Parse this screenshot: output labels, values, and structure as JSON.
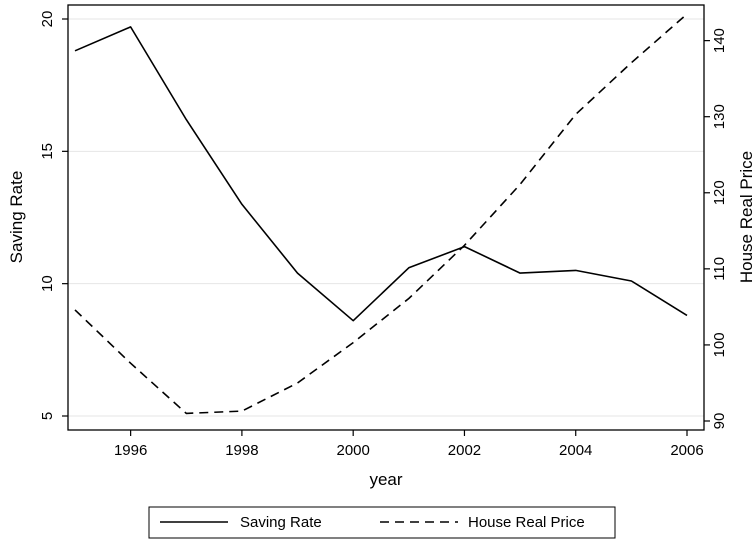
{
  "chart_data": {
    "type": "line",
    "x": [
      1995,
      1996,
      1997,
      1998,
      1999,
      2000,
      2001,
      2002,
      2003,
      2004,
      2005,
      2006
    ],
    "xlabel": "year",
    "x_ticks": [
      1996,
      1998,
      2000,
      2002,
      2004,
      2006
    ],
    "xlim": [
      1995,
      2006
    ],
    "y_left": {
      "label": "Saving Rate",
      "ticks": [
        5,
        10,
        15,
        20
      ],
      "lim": [
        5,
        20
      ]
    },
    "y_right": {
      "label": "House Real Price",
      "ticks": [
        90,
        100,
        110,
        120,
        130,
        140
      ],
      "lim": [
        90,
        143.5
      ]
    },
    "series": [
      {
        "name": "Saving Rate",
        "axis": "left",
        "style": "solid",
        "color": "#000000",
        "values": [
          18.8,
          19.7,
          16.2,
          13.0,
          10.4,
          8.6,
          10.6,
          11.4,
          10.4,
          10.5,
          10.1,
          8.8
        ]
      },
      {
        "name": "House Real Price",
        "axis": "right",
        "style": "dashed",
        "color": "#000000",
        "values": [
          104.6,
          97.6,
          91.0,
          91.3,
          95.0,
          100.3,
          106.1,
          113.1,
          121.1,
          130.3,
          137.1,
          143.5
        ]
      }
    ],
    "grid": true,
    "legend_placement": "bottom"
  }
}
